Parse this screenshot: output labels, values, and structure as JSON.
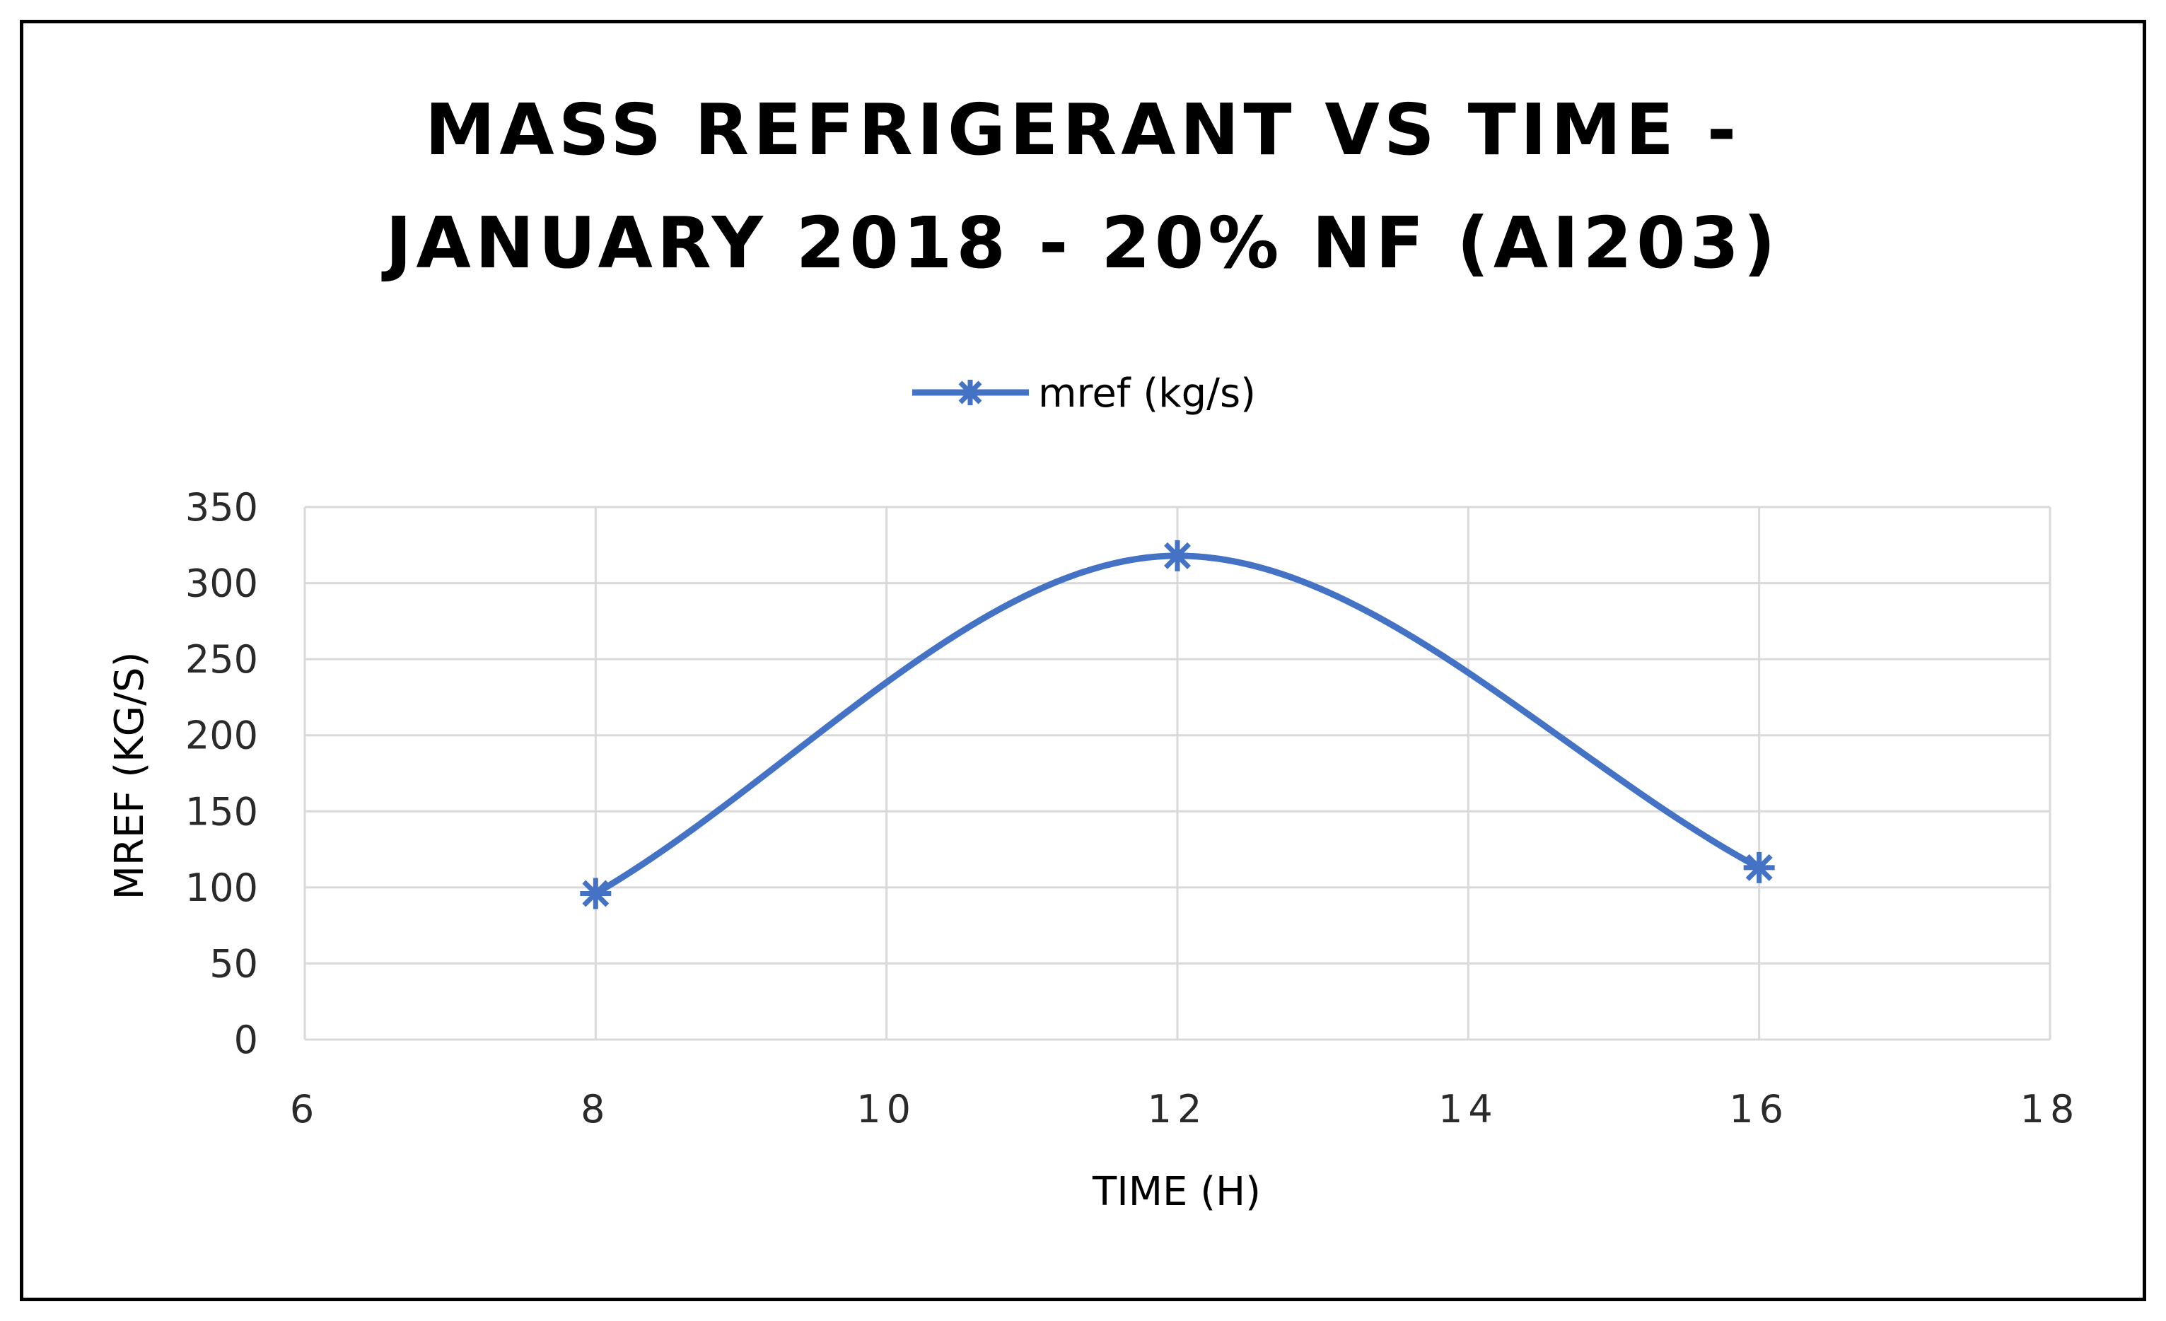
{
  "chart_data": {
    "type": "scatter",
    "title_lines": [
      "MASS REFRIGERANT  VS TIME -",
      "JANUARY  2018 - 20% NF (AI203)"
    ],
    "xlabel": "TIME (H)",
    "ylabel": "MREF (KG/S)",
    "xlim": [
      6,
      18
    ],
    "ylim": [
      0,
      350
    ],
    "xticks": [
      6,
      8,
      10,
      12,
      14,
      16,
      18
    ],
    "yticks": [
      0,
      50,
      100,
      150,
      200,
      250,
      300,
      350
    ],
    "grid": true,
    "legend_position": "top-center",
    "series": [
      {
        "name": "mref (kg/s)",
        "color": "#4472C4",
        "marker": "asterisk",
        "smooth": true,
        "x": [
          8,
          12,
          16
        ],
        "y": [
          96,
          318,
          113
        ]
      }
    ]
  }
}
